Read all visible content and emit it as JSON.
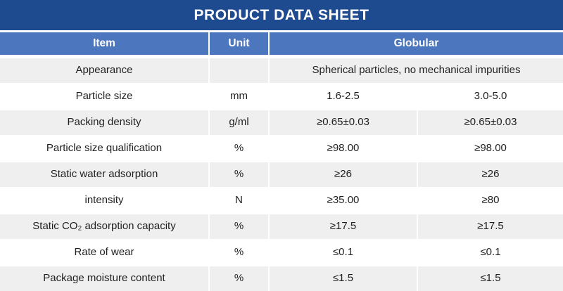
{
  "title": "PRODUCT DATA SHEET",
  "colors": {
    "title_bg": "#1e4a8f",
    "header_bg": "#4c76bd",
    "row_alt_bg": "#efefef",
    "text": "#1f1f1f",
    "header_text": "#ffffff"
  },
  "table": {
    "headers": {
      "item": "Item",
      "unit": "Unit",
      "group": "Globular"
    },
    "rows": [
      {
        "item": "Appearance",
        "unit": "",
        "span": "Spherical particles, no mechanical impurities"
      },
      {
        "item": "Particle size",
        "unit": "mm",
        "v1": "1.6-2.5",
        "v2": "3.0-5.0"
      },
      {
        "item": "Packing density",
        "unit": "g/ml",
        "v1": "≥0.65±0.03",
        "v2": "≥0.65±0.03"
      },
      {
        "item": "Particle size qualification",
        "unit": "%",
        "v1": "≥98.00",
        "v2": "≥98.00"
      },
      {
        "item": "Static water adsorption",
        "unit": "%",
        "v1": "≥26",
        "v2": "≥26"
      },
      {
        "item": "intensity",
        "unit": "N",
        "v1": "≥35.00",
        "v2": "≥80"
      },
      {
        "item": "Static CO₂ adsorption capacity",
        "unit": "%",
        "v1": "≥17.5",
        "v2": "≥17.5"
      },
      {
        "item": "Rate of wear",
        "unit": "%",
        "v1": "≤0.1",
        "v2": "≤0.1"
      },
      {
        "item": "Package moisture content",
        "unit": "%",
        "v1": "≤1.5",
        "v2": "≤1.5"
      }
    ]
  }
}
